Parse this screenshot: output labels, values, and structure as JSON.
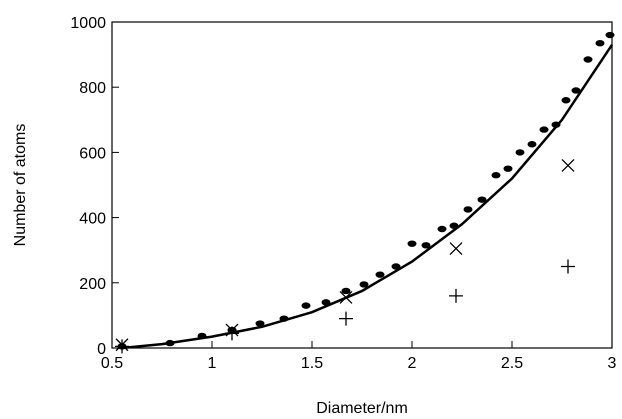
{
  "chart_data": {
    "type": "scatter",
    "xlabel": "Diameter/nm",
    "ylabel": "Number of atoms",
    "xlim": [
      0.5,
      3
    ],
    "xticks": [
      0.5,
      1,
      1.5,
      2,
      2.5,
      3
    ],
    "ylim": [
      0,
      1000
    ],
    "yticks": [
      0,
      200,
      400,
      600,
      800,
      1000
    ],
    "series": [
      {
        "marker": "dot",
        "color": "#000000",
        "x": [
          0.55,
          0.79,
          0.95,
          1.1,
          1.24,
          1.36,
          1.47,
          1.57,
          1.67,
          1.76,
          1.84,
          1.92,
          2.0,
          2.07,
          2.15,
          2.21,
          2.28,
          2.35,
          2.42,
          2.48,
          2.54,
          2.6,
          2.66,
          2.72,
          2.77,
          2.82,
          2.88,
          2.94,
          2.99
        ],
        "values": [
          5,
          15,
          37,
          55,
          75,
          90,
          130,
          140,
          175,
          195,
          225,
          250,
          320,
          315,
          365,
          375,
          425,
          455,
          530,
          550,
          600,
          625,
          670,
          685,
          760,
          790,
          885,
          935,
          960
        ]
      },
      {
        "marker": "x",
        "color": "#000000",
        "x": [
          0.55,
          1.1,
          1.67,
          2.22,
          2.78
        ],
        "values": [
          10,
          55,
          155,
          305,
          560
        ]
      },
      {
        "marker": "plus",
        "color": "#000000",
        "x": [
          0.55,
          1.1,
          1.67,
          2.22,
          2.78
        ],
        "values": [
          5,
          45,
          90,
          160,
          250
        ]
      },
      {
        "marker": "line",
        "color": "#000000",
        "x": [
          0.55,
          0.75,
          1,
          1.25,
          1.5,
          1.75,
          2,
          2.25,
          2.5,
          2.75,
          3
        ],
        "values": [
          0,
          12,
          35,
          65,
          110,
          175,
          265,
          380,
          520,
          700,
          930
        ]
      }
    ]
  }
}
